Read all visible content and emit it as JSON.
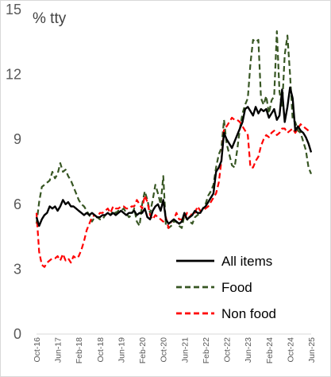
{
  "chart_data": {
    "type": "line",
    "title": "",
    "unit_label": "% tty",
    "xlabel": "",
    "ylabel": "",
    "ylim": [
      0,
      15
    ],
    "yticks": [
      0,
      3,
      6,
      9,
      12,
      15
    ],
    "xlim": [
      0,
      104
    ],
    "grid": false,
    "legend_position": "bottom-right",
    "x_tick_labels": [
      {
        "x": 0,
        "label": "Oct-16"
      },
      {
        "x": 8,
        "label": "Jun-17"
      },
      {
        "x": 16,
        "label": "Feb-18"
      },
      {
        "x": 24,
        "label": "Oct-18"
      },
      {
        "x": 32,
        "label": "Jun-19"
      },
      {
        "x": 40,
        "label": "Feb-20"
      },
      {
        "x": 48,
        "label": "Oct-20"
      },
      {
        "x": 56,
        "label": "Jun-21"
      },
      {
        "x": 64,
        "label": "Feb-22"
      },
      {
        "x": 72,
        "label": "Oct-22"
      },
      {
        "x": 80,
        "label": "Jun-23"
      },
      {
        "x": 88,
        "label": "Feb-24"
      },
      {
        "x": 96,
        "label": "Oct-24"
      },
      {
        "x": 104,
        "label": "Jun-25"
      }
    ],
    "series": [
      {
        "name": "All items",
        "color": "#000000",
        "dash": "solid",
        "points": [
          [
            0,
            5.4
          ],
          [
            1,
            5.0
          ],
          [
            2,
            5.3
          ],
          [
            3,
            5.5
          ],
          [
            4,
            5.6
          ],
          [
            5,
            5.9
          ],
          [
            6,
            5.8
          ],
          [
            7,
            5.9
          ],
          [
            8,
            5.7
          ],
          [
            9,
            5.9
          ],
          [
            10,
            6.2
          ],
          [
            11,
            6.0
          ],
          [
            12,
            6.1
          ],
          [
            13,
            5.9
          ],
          [
            14,
            5.9
          ],
          [
            15,
            5.8
          ],
          [
            16,
            5.7
          ],
          [
            17,
            5.6
          ],
          [
            18,
            5.5
          ],
          [
            19,
            5.6
          ],
          [
            20,
            5.5
          ],
          [
            21,
            5.6
          ],
          [
            22,
            5.5
          ],
          [
            23,
            5.4
          ],
          [
            24,
            5.4
          ],
          [
            25,
            5.5
          ],
          [
            26,
            5.5
          ],
          [
            27,
            5.6
          ],
          [
            28,
            5.5
          ],
          [
            29,
            5.6
          ],
          [
            30,
            5.5
          ],
          [
            31,
            5.6
          ],
          [
            32,
            5.7
          ],
          [
            33,
            5.6
          ],
          [
            34,
            5.5
          ],
          [
            35,
            5.6
          ],
          [
            36,
            5.6
          ],
          [
            37,
            5.7
          ],
          [
            38,
            5.5
          ],
          [
            39,
            5.6
          ],
          [
            40,
            5.6
          ],
          [
            41,
            5.8
          ],
          [
            42,
            5.4
          ],
          [
            43,
            5.3
          ],
          [
            44,
            5.7
          ],
          [
            45,
            5.9
          ],
          [
            46,
            6.0
          ],
          [
            47,
            5.7
          ],
          [
            48,
            6.2
          ],
          [
            49,
            5.3
          ],
          [
            50,
            5.1
          ],
          [
            51,
            5.2
          ],
          [
            52,
            5.3
          ],
          [
            53,
            5.2
          ],
          [
            54,
            5.1
          ],
          [
            55,
            5.2
          ],
          [
            56,
            5.6
          ],
          [
            57,
            5.3
          ],
          [
            58,
            5.4
          ],
          [
            59,
            5.5
          ],
          [
            60,
            5.7
          ],
          [
            61,
            5.6
          ],
          [
            62,
            5.6
          ],
          [
            63,
            5.8
          ],
          [
            64,
            5.9
          ],
          [
            65,
            6.1
          ],
          [
            66,
            6.3
          ],
          [
            67,
            6.5
          ],
          [
            68,
            7.5
          ],
          [
            69,
            7.7
          ],
          [
            70,
            8.0
          ],
          [
            71,
            9.3
          ],
          [
            72,
            9.0
          ],
          [
            73,
            8.8
          ],
          [
            74,
            8.6
          ],
          [
            75,
            8.9
          ],
          [
            76,
            9.2
          ],
          [
            77,
            9.5
          ],
          [
            78,
            9.8
          ],
          [
            79,
            10.4
          ],
          [
            80,
            10.5
          ],
          [
            81,
            10.3
          ],
          [
            82,
            10.1
          ],
          [
            83,
            10.5
          ],
          [
            84,
            10.2
          ],
          [
            85,
            10.4
          ],
          [
            86,
            10.3
          ],
          [
            87,
            10.4
          ],
          [
            88,
            10.0
          ],
          [
            89,
            10.2
          ],
          [
            90,
            10.4
          ],
          [
            91,
            9.9
          ],
          [
            92,
            10.1
          ],
          [
            93,
            11.3
          ],
          [
            94,
            9.8
          ],
          [
            95,
            10.5
          ],
          [
            96,
            11.4
          ],
          [
            97,
            10.9
          ],
          [
            98,
            9.4
          ],
          [
            99,
            9.6
          ],
          [
            100,
            9.4
          ],
          [
            101,
            9.3
          ],
          [
            102,
            9.1
          ],
          [
            103,
            8.8
          ],
          [
            104,
            8.4
          ]
        ]
      },
      {
        "name": "Food",
        "color": "#375623",
        "dash": "dashed",
        "points": [
          [
            0,
            5.1
          ],
          [
            1,
            6.1
          ],
          [
            2,
            6.8
          ],
          [
            3,
            6.9
          ],
          [
            4,
            7.0
          ],
          [
            5,
            7.1
          ],
          [
            6,
            7.5
          ],
          [
            7,
            7.2
          ],
          [
            8,
            7.4
          ],
          [
            9,
            7.9
          ],
          [
            10,
            7.5
          ],
          [
            11,
            7.6
          ],
          [
            12,
            7.3
          ],
          [
            13,
            7.1
          ],
          [
            14,
            6.8
          ],
          [
            15,
            6.5
          ],
          [
            16,
            6.2
          ],
          [
            17,
            6.0
          ],
          [
            18,
            5.9
          ],
          [
            19,
            5.7
          ],
          [
            20,
            5.5
          ],
          [
            21,
            5.2
          ],
          [
            22,
            5.4
          ],
          [
            23,
            5.4
          ],
          [
            24,
            5.3
          ],
          [
            25,
            5.3
          ],
          [
            26,
            5.5
          ],
          [
            27,
            5.6
          ],
          [
            28,
            5.5
          ],
          [
            29,
            5.7
          ],
          [
            30,
            5.6
          ],
          [
            31,
            5.7
          ],
          [
            32,
            5.7
          ],
          [
            33,
            5.8
          ],
          [
            34,
            5.6
          ],
          [
            35,
            5.4
          ],
          [
            36,
            5.5
          ],
          [
            37,
            5.8
          ],
          [
            38,
            5.2
          ],
          [
            39,
            5.0
          ],
          [
            40,
            6.0
          ],
          [
            41,
            6.6
          ],
          [
            42,
            6.2
          ],
          [
            43,
            5.6
          ],
          [
            44,
            6.2
          ],
          [
            45,
            6.9
          ],
          [
            46,
            6.5
          ],
          [
            47,
            6.0
          ],
          [
            48,
            7.3
          ],
          [
            49,
            5.0
          ],
          [
            50,
            4.9
          ],
          [
            51,
            5.0
          ],
          [
            52,
            5.2
          ],
          [
            53,
            5.2
          ],
          [
            54,
            5.0
          ],
          [
            55,
            4.9
          ],
          [
            56,
            5.5
          ],
          [
            57,
            5.3
          ],
          [
            58,
            5.2
          ],
          [
            59,
            5.1
          ],
          [
            60,
            5.4
          ],
          [
            61,
            5.5
          ],
          [
            62,
            5.6
          ],
          [
            63,
            5.8
          ],
          [
            64,
            6.0
          ],
          [
            65,
            6.4
          ],
          [
            66,
            6.6
          ],
          [
            67,
            6.9
          ],
          [
            68,
            7.7
          ],
          [
            69,
            8.3
          ],
          [
            70,
            8.6
          ],
          [
            71,
            9.9
          ],
          [
            72,
            8.8
          ],
          [
            73,
            8.3
          ],
          [
            74,
            7.8
          ],
          [
            75,
            7.7
          ],
          [
            76,
            8.5
          ],
          [
            77,
            9.5
          ],
          [
            78,
            10.2
          ],
          [
            79,
            10.6
          ],
          [
            80,
            10.9
          ],
          [
            81,
            12.5
          ],
          [
            82,
            13.6
          ],
          [
            83,
            13.5
          ],
          [
            84,
            13.6
          ],
          [
            85,
            10.9
          ],
          [
            86,
            10.6
          ],
          [
            87,
            11.0
          ],
          [
            88,
            10.2
          ],
          [
            89,
            10.8
          ],
          [
            90,
            11.0
          ],
          [
            91,
            14.0
          ],
          [
            92,
            11.2
          ],
          [
            93,
            10.5
          ],
          [
            94,
            12.9
          ],
          [
            95,
            13.8
          ],
          [
            96,
            12.0
          ],
          [
            97,
            9.9
          ],
          [
            98,
            9.8
          ],
          [
            99,
            9.4
          ],
          [
            100,
            9.3
          ],
          [
            101,
            8.9
          ],
          [
            102,
            8.5
          ],
          [
            103,
            7.7
          ],
          [
            104,
            7.4
          ]
        ]
      },
      {
        "name": "Non food",
        "color": "#ff0000",
        "dash": "dashed",
        "points": [
          [
            0,
            5.6
          ],
          [
            1,
            3.8
          ],
          [
            2,
            3.2
          ],
          [
            3,
            3.1
          ],
          [
            4,
            3.3
          ],
          [
            5,
            3.4
          ],
          [
            6,
            3.5
          ],
          [
            7,
            3.5
          ],
          [
            8,
            3.6
          ],
          [
            9,
            3.4
          ],
          [
            10,
            3.7
          ],
          [
            11,
            3.4
          ],
          [
            12,
            3.5
          ],
          [
            13,
            3.3
          ],
          [
            14,
            3.6
          ],
          [
            15,
            3.5
          ],
          [
            16,
            3.6
          ],
          [
            17,
            3.9
          ],
          [
            18,
            4.3
          ],
          [
            19,
            4.8
          ],
          [
            20,
            5.1
          ],
          [
            21,
            5.4
          ],
          [
            22,
            5.5
          ],
          [
            23,
            5.4
          ],
          [
            24,
            5.6
          ],
          [
            25,
            5.6
          ],
          [
            26,
            5.7
          ],
          [
            27,
            5.8
          ],
          [
            28,
            5.6
          ],
          [
            29,
            5.9
          ],
          [
            30,
            5.8
          ],
          [
            31,
            5.8
          ],
          [
            32,
            5.9
          ],
          [
            33,
            5.9
          ],
          [
            34,
            5.8
          ],
          [
            35,
            5.8
          ],
          [
            36,
            5.9
          ],
          [
            37,
            5.9
          ],
          [
            38,
            6.2
          ],
          [
            39,
            6.0
          ],
          [
            40,
            5.8
          ],
          [
            41,
            6.4
          ],
          [
            42,
            6.1
          ],
          [
            43,
            5.5
          ],
          [
            44,
            5.3
          ],
          [
            45,
            5.5
          ],
          [
            46,
            5.4
          ],
          [
            47,
            5.3
          ],
          [
            48,
            5.2
          ],
          [
            49,
            5.4
          ],
          [
            50,
            4.9
          ],
          [
            51,
            5.2
          ],
          [
            52,
            5.3
          ],
          [
            53,
            5.6
          ],
          [
            54,
            5.3
          ],
          [
            55,
            5.3
          ],
          [
            56,
            5.3
          ],
          [
            57,
            5.6
          ],
          [
            58,
            5.4
          ],
          [
            59,
            5.6
          ],
          [
            60,
            5.6
          ],
          [
            61,
            5.9
          ],
          [
            62,
            5.7
          ],
          [
            63,
            5.7
          ],
          [
            64,
            5.8
          ],
          [
            65,
            5.9
          ],
          [
            66,
            6.1
          ],
          [
            67,
            6.3
          ],
          [
            68,
            6.5
          ],
          [
            69,
            7.0
          ],
          [
            70,
            8.0
          ],
          [
            71,
            9.5
          ],
          [
            72,
            9.6
          ],
          [
            73,
            9.8
          ],
          [
            74,
            10.0
          ],
          [
            75,
            9.9
          ],
          [
            76,
            9.9
          ],
          [
            77,
            9.8
          ],
          [
            78,
            9.6
          ],
          [
            79,
            9.4
          ],
          [
            80,
            9.2
          ],
          [
            81,
            7.7
          ],
          [
            82,
            7.7
          ],
          [
            83,
            8.0
          ],
          [
            84,
            8.2
          ],
          [
            85,
            8.7
          ],
          [
            86,
            9.0
          ],
          [
            87,
            9.2
          ],
          [
            88,
            9.1
          ],
          [
            89,
            9.3
          ],
          [
            90,
            9.4
          ],
          [
            91,
            9.2
          ],
          [
            92,
            9.3
          ],
          [
            93,
            9.5
          ],
          [
            94,
            9.5
          ],
          [
            95,
            9.3
          ],
          [
            96,
            9.4
          ],
          [
            97,
            9.5
          ],
          [
            98,
            9.3
          ],
          [
            99,
            9.5
          ],
          [
            100,
            9.7
          ],
          [
            101,
            9.6
          ],
          [
            102,
            9.5
          ],
          [
            103,
            9.4
          ],
          [
            104,
            9.4
          ]
        ]
      }
    ]
  }
}
